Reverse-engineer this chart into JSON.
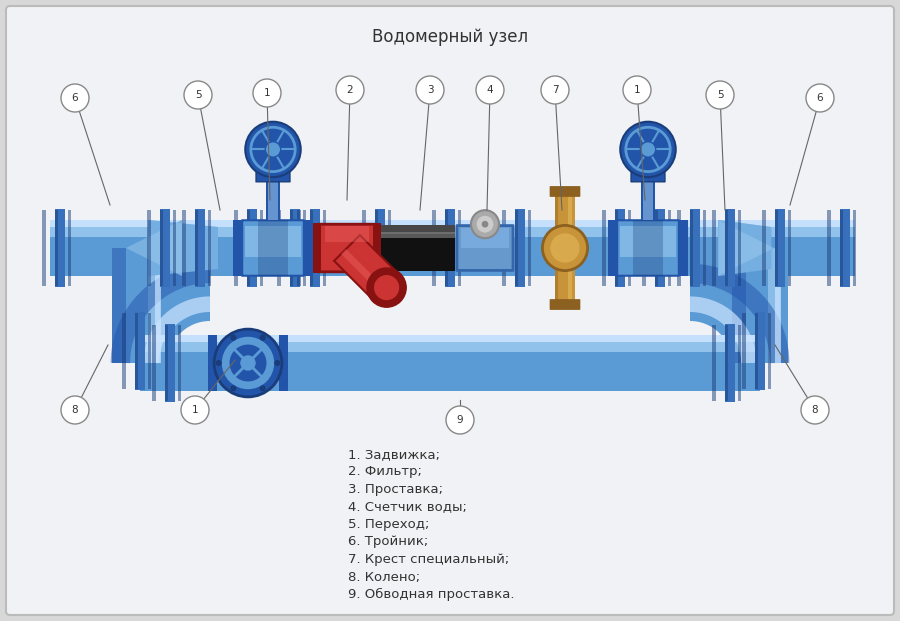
{
  "title": "Водомерный узел",
  "title_fontsize": 12,
  "title_color": "#333333",
  "bg_color": "#d8d8d8",
  "panel_facecolor": "#f2f2f2",
  "pipe_mid": "#5b9bd5",
  "pipe_light": "#a8d4f5",
  "pipe_dark": "#2255aa",
  "pipe_shadow": "#1a3d7a",
  "pipe_highlight": "#cce4ff",
  "filter_red": "#cc3333",
  "filter_dark": "#881111",
  "filter_light": "#ee6666",
  "spacer_dark": "#111111",
  "spacer_mid": "#444444",
  "spacer_light": "#777777",
  "brass": "#c8943a",
  "brass_dark": "#8b6020",
  "brass_light": "#e8c060",
  "label_color": "#333333",
  "legend_items": [
    "1. Задвижка;",
    "2. Фильтр;",
    "3. Проставка;",
    "4. Счетчик воды;",
    "5. Переход;",
    "6. Тройник;",
    "7. Крест специальный;",
    "8. Колено;",
    "9. Обводная проставка."
  ]
}
